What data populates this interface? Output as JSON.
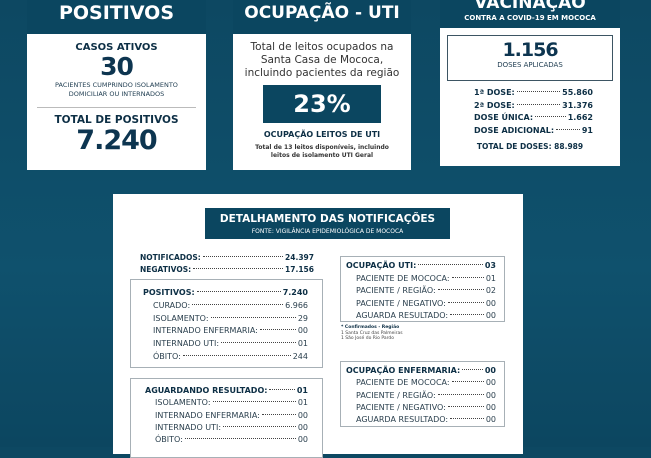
{
  "positivos": {
    "title": "POSITIVOS",
    "ativos_label": "CASOS ATIVOS",
    "ativos_value": "30",
    "ativos_desc1": "PACIENTES CUMPRINDO ISOLAMENTO",
    "ativos_desc2": "DOMICILIAR OU INTERNADOS",
    "total_label": "TOTAL DE POSITIVOS",
    "total_value": "7.240"
  },
  "uti": {
    "title": "OCUPAÇÃO - UTI",
    "desc1": "Total de leitos ocupados na",
    "desc2": "Santa Casa de Mococa,",
    "desc3": "incluindo pacientes da região",
    "percent": "23%",
    "label": "OCUPAÇÃO LEITOS DE UTI",
    "note1": "Total de 13 leitos disponíveis, incluindo",
    "note2": "leitos de isolamento UTI Geral"
  },
  "vacinacao": {
    "title": "VACINAÇÃO",
    "subtitle": "CONTRA A COVID-19 EM MOCOCA",
    "doses_value": "1.156",
    "doses_label": "DOSES APLICADAS",
    "rows": [
      {
        "label": "1ª DOSE:",
        "value": "55.860"
      },
      {
        "label": "2ª DOSE:",
        "value": "31.376"
      },
      {
        "label": "DOSE ÚNICA:",
        "value": "1.662"
      },
      {
        "label": "DOSE ADICIONAL:",
        "value": "91"
      }
    ],
    "total": "TOTAL DE DOSES: 88.989"
  },
  "detalhamento": {
    "title": "DETALHAMENTO DAS NOTIFICAÇÕES",
    "source": "FONTE: VIGILÂNCIA EPIDEMIOLÓGICA DE MOCOCA",
    "notificados": {
      "label": "NOTIFICADOS:",
      "value": "24.397"
    },
    "negativos": {
      "label": "NEGATIVOS:",
      "value": "17.156"
    },
    "positivos": [
      {
        "label": "POSITIVOS:",
        "value": "7.240"
      },
      {
        "label": "CURADO:",
        "value": "6.966"
      },
      {
        "label": "ISOLAMENTO:",
        "value": "29"
      },
      {
        "label": "INTERNADO ENFERMARIA:",
        "value": "00"
      },
      {
        "label": "INTERNADO UTI:",
        "value": "01"
      },
      {
        "label": "ÓBITO:",
        "value": "244"
      }
    ],
    "aguardando": [
      {
        "label": "AGUARDANDO RESULTADO:",
        "value": "01"
      },
      {
        "label": "ISOLAMENTO:",
        "value": "01"
      },
      {
        "label": "INTERNADO ENFERMARIA:",
        "value": "00"
      },
      {
        "label": "INTERNADO UTI:",
        "value": "00"
      },
      {
        "label": "ÓBITO:",
        "value": "00"
      }
    ],
    "ocup_uti": [
      {
        "label": "OCUPAÇÃO UTI:",
        "value": "03"
      },
      {
        "label": "PACIENTE DE MOCOCA:",
        "value": "01"
      },
      {
        "label": "PACIENTE / REGIÃO:",
        "value": "02"
      },
      {
        "label": "PACIENTE / NEGATIVO:",
        "value": "00"
      },
      {
        "label": "AGUARDA RESULTADO:",
        "value": "00"
      }
    ],
    "confirmados": {
      "title": "* Confirmados - Região",
      "l1": "1 Santa Cruz das Palmeiras",
      "l2": "1 São José do Rio Pardo"
    },
    "ocup_enf": [
      {
        "label": "OCUPAÇÃO ENFERMARIA:",
        "value": "00"
      },
      {
        "label": "PACIENTE DE MOCOCA:",
        "value": "00"
      },
      {
        "label": "PACIENTE / REGIÃO:",
        "value": "00"
      },
      {
        "label": "PACIENTE / NEGATIVO:",
        "value": "00"
      },
      {
        "label": "AGUARDA RESULTADO:",
        "value": "00"
      }
    ]
  }
}
